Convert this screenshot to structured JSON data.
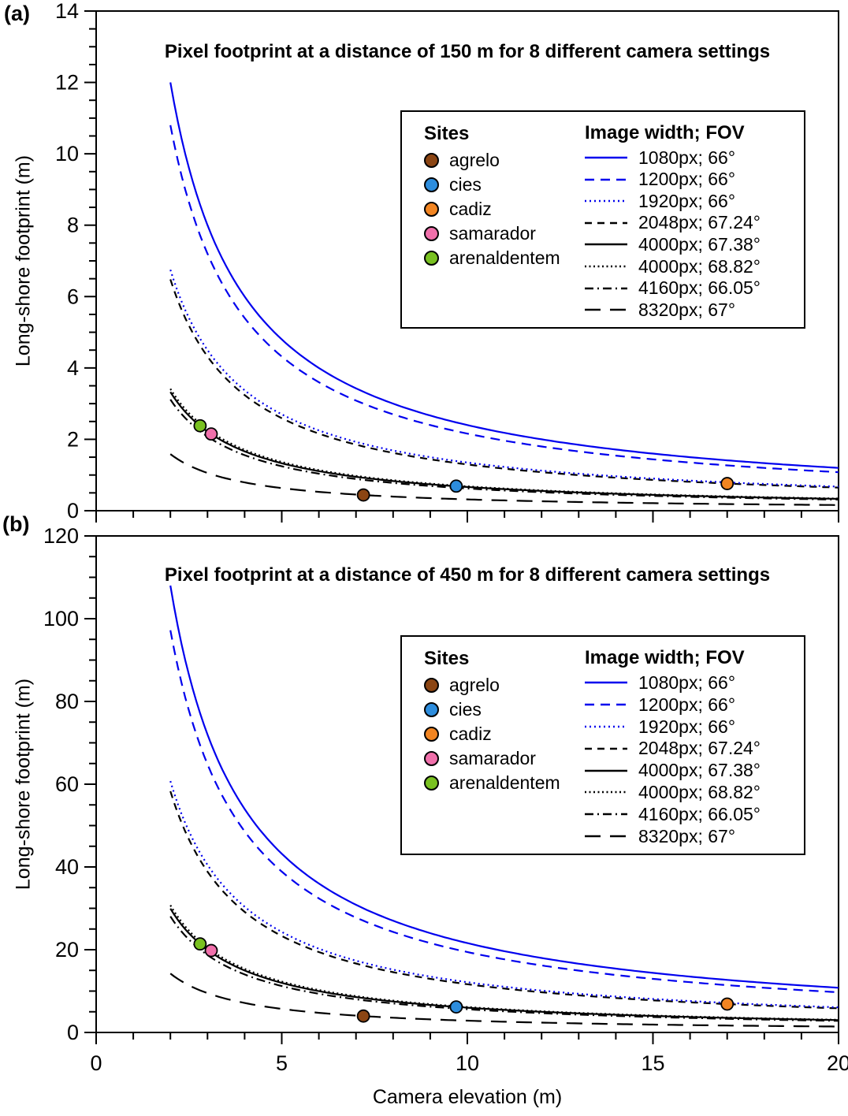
{
  "legend": {
    "sites_header": "Sites",
    "lines_header": "Image width; FOV"
  },
  "sites": [
    {
      "name": "agrelo",
      "color": "#8b4513"
    },
    {
      "name": "cies",
      "color": "#2d8ddd"
    },
    {
      "name": "cadiz",
      "color": "#f28522"
    },
    {
      "name": "samarador",
      "color": "#f070ab"
    },
    {
      "name": "arenaldentem",
      "color": "#79c121"
    }
  ],
  "chart_data": [
    {
      "type": "line",
      "id": "a",
      "panel_label": "(a)",
      "title": "Pixel footprint at a distance of 150 m for 8 different camera settings",
      "xlabel": "Camera elevation (m)",
      "ylabel": "Long-shore footprint (m)",
      "xlim": [
        0,
        20
      ],
      "ylim": [
        0,
        14
      ],
      "x_major_ticks": [
        0,
        5,
        10,
        15,
        20
      ],
      "x_minor_step": 1,
      "y_major_ticks": [
        0,
        2,
        4,
        6,
        8,
        10,
        12,
        14
      ],
      "y_minor_step": 0.5,
      "show_x_tick_labels": false,
      "x_curve_range": [
        2,
        20
      ],
      "x_sample": [
        2,
        2.5,
        3,
        4,
        5,
        6,
        8,
        10,
        12,
        15,
        20
      ],
      "series": [
        {
          "name": "1080px; 66°",
          "color": "#0000ee",
          "dash": "",
          "coef": 24.0,
          "values": [
            12,
            9.6,
            8,
            6,
            4.8,
            4,
            3,
            2.4,
            2,
            1.6,
            1.2
          ]
        },
        {
          "name": "1200px; 66°",
          "color": "#0000ee",
          "dash": "12,8",
          "coef": 21.6,
          "values": [
            10.8,
            8.64,
            7.2,
            5.4,
            4.32,
            3.6,
            2.7,
            2.16,
            1.8,
            1.44,
            1.08
          ]
        },
        {
          "name": "1920px; 66°",
          "color": "#0000ee",
          "dash": "2,4",
          "coef": 13.5,
          "values": [
            6.75,
            5.4,
            4.5,
            3.38,
            2.7,
            2.25,
            1.69,
            1.35,
            1.13,
            0.9,
            0.68
          ]
        },
        {
          "name": "2048px; 67.24°",
          "color": "#000000",
          "dash": "9,7",
          "coef": 12.96,
          "values": [
            6.48,
            5.18,
            4.32,
            3.24,
            2.59,
            2.16,
            1.62,
            1.3,
            1.08,
            0.86,
            0.65
          ]
        },
        {
          "name": "4000px; 67.38°",
          "color": "#000000",
          "dash": "",
          "coef": 6.65,
          "values": [
            3.33,
            2.66,
            2.22,
            1.66,
            1.33,
            1.11,
            0.83,
            0.67,
            0.55,
            0.44,
            0.33
          ]
        },
        {
          "name": "4000px; 68.82°",
          "color": "#000000",
          "dash": "2,3.5",
          "coef": 6.83,
          "values": [
            3.42,
            2.73,
            2.28,
            1.71,
            1.37,
            1.14,
            0.85,
            0.68,
            0.57,
            0.46,
            0.34
          ]
        },
        {
          "name": "4160px; 66.05°",
          "color": "#000000",
          "dash": "11,5,2,5",
          "coef": 6.23,
          "values": [
            3.12,
            2.49,
            2.08,
            1.56,
            1.25,
            1.04,
            0.78,
            0.62,
            0.52,
            0.42,
            0.31
          ]
        },
        {
          "name": "8320px; 67°",
          "color": "#000000",
          "dash": "20,12",
          "coef": 3.17,
          "values": [
            1.59,
            1.27,
            1.06,
            0.79,
            0.63,
            0.53,
            0.4,
            0.32,
            0.26,
            0.21,
            0.16
          ]
        }
      ],
      "sites": [
        {
          "site": "arenaldentem",
          "x": 2.8,
          "y": 2.38
        },
        {
          "site": "samarador",
          "x": 3.1,
          "y": 2.15
        },
        {
          "site": "agrelo",
          "x": 7.2,
          "y": 0.44
        },
        {
          "site": "cies",
          "x": 9.7,
          "y": 0.69
        },
        {
          "site": "cadiz",
          "x": 17.0,
          "y": 0.76
        }
      ]
    },
    {
      "type": "line",
      "id": "b",
      "panel_label": "(b)",
      "title": "Pixel footprint at a distance of 450 m for 8 different camera settings",
      "xlabel": "Camera elevation (m)",
      "ylabel": "Long-shore footprint (m)",
      "xlim": [
        0,
        20
      ],
      "ylim": [
        0,
        120
      ],
      "x_major_ticks": [
        0,
        5,
        10,
        15,
        20
      ],
      "x_minor_step": 1,
      "y_major_ticks": [
        0,
        20,
        40,
        60,
        80,
        100,
        120
      ],
      "y_minor_step": 5,
      "show_x_tick_labels": true,
      "x_curve_range": [
        2,
        20
      ],
      "x_sample": [
        2,
        2.5,
        3,
        4,
        5,
        6,
        8,
        10,
        12,
        15,
        20
      ],
      "series": [
        {
          "name": "1080px; 66°",
          "color": "#0000ee",
          "dash": "",
          "coef": 216.0,
          "values": [
            108,
            86.4,
            72,
            54,
            43.2,
            36,
            27,
            21.6,
            18,
            14.4,
            10.8
          ]
        },
        {
          "name": "1200px; 66°",
          "color": "#0000ee",
          "dash": "12,8",
          "coef": 194.4,
          "values": [
            97.2,
            77.8,
            64.8,
            48.6,
            38.9,
            32.4,
            24.3,
            19.4,
            16.2,
            13,
            9.7
          ]
        },
        {
          "name": "1920px; 66°",
          "color": "#0000ee",
          "dash": "2,4",
          "coef": 121.5,
          "values": [
            60.8,
            48.6,
            40.5,
            30.4,
            24.3,
            20.3,
            15.2,
            12.2,
            10.1,
            8.1,
            6.1
          ]
        },
        {
          "name": "2048px; 67.24°",
          "color": "#000000",
          "dash": "9,7",
          "coef": 116.6,
          "values": [
            58.3,
            46.7,
            38.9,
            29.2,
            23.3,
            19.4,
            14.6,
            11.7,
            9.7,
            7.8,
            5.8
          ]
        },
        {
          "name": "4000px; 67.38°",
          "color": "#000000",
          "dash": "",
          "coef": 59.9,
          "values": [
            29.9,
            23.9,
            20,
            15,
            12,
            10,
            7.5,
            6,
            5,
            4,
            3
          ]
        },
        {
          "name": "4000px; 68.82°",
          "color": "#000000",
          "dash": "2,3.5",
          "coef": 61.5,
          "values": [
            30.7,
            24.6,
            20.5,
            15.4,
            12.3,
            10.2,
            7.7,
            6.1,
            5.1,
            4.1,
            3.1
          ]
        },
        {
          "name": "4160px; 66.05°",
          "color": "#000000",
          "dash": "11,5,2,5",
          "coef": 56.1,
          "values": [
            28,
            22.4,
            18.7,
            14,
            11.2,
            9.3,
            7,
            5.6,
            4.7,
            3.7,
            2.8
          ]
        },
        {
          "name": "8320px; 67°",
          "color": "#000000",
          "dash": "20,12",
          "coef": 28.5,
          "values": [
            14.3,
            11.4,
            9.5,
            7.1,
            5.7,
            4.8,
            3.6,
            2.9,
            2.4,
            1.9,
            1.4
          ]
        }
      ],
      "sites": [
        {
          "site": "arenaldentem",
          "x": 2.8,
          "y": 21.4
        },
        {
          "site": "samarador",
          "x": 3.1,
          "y": 19.8
        },
        {
          "site": "agrelo",
          "x": 7.2,
          "y": 3.96
        },
        {
          "site": "cies",
          "x": 9.7,
          "y": 6.17
        },
        {
          "site": "cadiz",
          "x": 17.0,
          "y": 6.86
        }
      ]
    }
  ]
}
